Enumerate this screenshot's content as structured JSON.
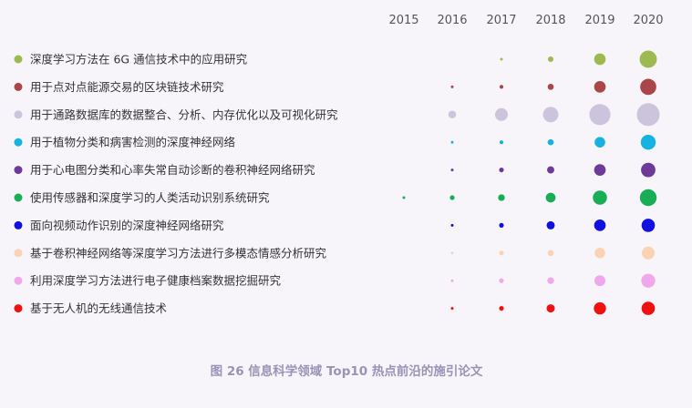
{
  "chart_data": {
    "type": "scatter",
    "caption": "图 26  信息科学领域 Top10 热点前沿的施引论文",
    "years": [
      "2015",
      "2016",
      "2017",
      "2018",
      "2019",
      "2020"
    ],
    "series": [
      {
        "name": "深度学习方法在 6G 通信技术中的应用研究",
        "color": "#9cba4f",
        "values": [
          0,
          0,
          1,
          4,
          18,
          40
        ]
      },
      {
        "name": "用于点对点能源交易的区块链技术研究",
        "color": "#a84648",
        "values": [
          0,
          1,
          2,
          5,
          18,
          35
        ]
      },
      {
        "name": "用于通路数据库的数据整合、分析、内存优化以及可视化研究",
        "color": "#cbc4dc",
        "values": [
          0,
          8,
          22,
          32,
          60,
          70
        ]
      },
      {
        "name": "用于植物分类和病害检测的深度神经网络",
        "color": "#15b2e2",
        "values": [
          0,
          1,
          2,
          5,
          15,
          30
        ]
      },
      {
        "name": "用于心电图分类和心率失常自动诊断的卷积神经网络研究",
        "color": "#6e3a9a",
        "values": [
          0,
          1,
          3,
          7,
          18,
          28
        ]
      },
      {
        "name": "使用传感器和深度学习的人类活动识别系统研究",
        "color": "#19ae55",
        "values": [
          1,
          3,
          6,
          13,
          27,
          38
        ]
      },
      {
        "name": "面向视频动作识别的深度神经网络研究",
        "color": "#1010e0",
        "values": [
          0,
          1,
          3,
          9,
          18,
          24
        ]
      },
      {
        "name": "基于卷积神经网络等深度学习方法进行多模态情感分析研究",
        "color": "#f9d3b3",
        "values": [
          0,
          1,
          3,
          5,
          15,
          22
        ]
      },
      {
        "name": "利用深度学习方法进行电子健康档案数据挖掘研究",
        "color": "#f0a8ec",
        "values": [
          0,
          1,
          3,
          6,
          16,
          26
        ]
      },
      {
        "name": "基于无人机的无线通信技术",
        "color": "#ef1010",
        "values": [
          0,
          1,
          3,
          9,
          20,
          24
        ]
      }
    ]
  }
}
